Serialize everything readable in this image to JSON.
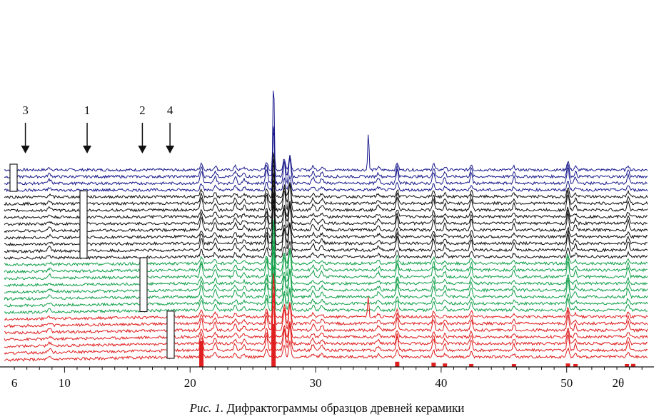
{
  "chart_data": {
    "type": "line",
    "title": "",
    "xlabel": "2θ",
    "ylabel": "",
    "x_ticks": [
      6,
      10,
      20,
      30,
      40,
      50
    ],
    "x_tick_labels": [
      "6",
      "10",
      "20",
      "30",
      "40",
      "50"
    ],
    "xlim": [
      5.2,
      56.5
    ],
    "stacked_traces": true,
    "groups": [
      {
        "color": "#1a1a8c",
        "traces": 4,
        "sample": "3"
      },
      {
        "color": "#111111",
        "traces": 10,
        "sample": "1"
      },
      {
        "color": "#12a04a",
        "traces": 8,
        "sample": "2"
      },
      {
        "color": "#e02020",
        "traces": 7,
        "sample": "4"
      }
    ],
    "peaks": [
      {
        "pos": 8.8,
        "h": 0.12,
        "w": 0.18
      },
      {
        "pos": 20.9,
        "h": 0.42,
        "w": 0.14
      },
      {
        "pos": 22.0,
        "h": 0.25,
        "w": 0.14
      },
      {
        "pos": 23.6,
        "h": 0.22,
        "w": 0.14
      },
      {
        "pos": 24.3,
        "h": 0.15,
        "w": 0.14
      },
      {
        "pos": 26.1,
        "h": 0.5,
        "w": 0.12
      },
      {
        "pos": 26.65,
        "h": 2.2,
        "w": 0.08
      },
      {
        "pos": 27.5,
        "h": 0.7,
        "w": 0.12
      },
      {
        "pos": 27.95,
        "h": 0.9,
        "w": 0.12
      },
      {
        "pos": 29.8,
        "h": 0.2,
        "w": 0.15
      },
      {
        "pos": 30.5,
        "h": 0.18,
        "w": 0.15
      },
      {
        "pos": 35.0,
        "h": 0.15,
        "w": 0.15
      },
      {
        "pos": 36.5,
        "h": 0.45,
        "w": 0.12
      },
      {
        "pos": 39.4,
        "h": 0.38,
        "w": 0.12
      },
      {
        "pos": 40.3,
        "h": 0.2,
        "w": 0.12
      },
      {
        "pos": 42.4,
        "h": 0.35,
        "w": 0.12
      },
      {
        "pos": 45.8,
        "h": 0.2,
        "w": 0.12
      },
      {
        "pos": 50.1,
        "h": 0.55,
        "w": 0.12
      },
      {
        "pos": 50.7,
        "h": 0.2,
        "w": 0.12
      },
      {
        "pos": 54.9,
        "h": 0.3,
        "w": 0.12
      }
    ],
    "special_peaks": [
      {
        "pos": 34.2,
        "h": 2.4,
        "group": "#1a1a8c"
      },
      {
        "pos": 34.2,
        "h": 1.3,
        "group": "#e02020"
      },
      {
        "pos": 26.65,
        "h": 3.5,
        "group": "#1a1a8c"
      }
    ],
    "markers": [
      {
        "label": "3",
        "pos": 6.2
      },
      {
        "label": "1",
        "pos": 11.8
      },
      {
        "label": "2",
        "pos": 16.2
      },
      {
        "label": "4",
        "pos": 18.4
      }
    ],
    "reference_sticks": [
      {
        "pos": 20.9,
        "h": 0.6
      },
      {
        "pos": 26.65,
        "h": 1.0
      },
      {
        "pos": 36.5,
        "h": 0.12
      },
      {
        "pos": 39.4,
        "h": 0.1
      },
      {
        "pos": 40.3,
        "h": 0.08
      },
      {
        "pos": 42.4,
        "h": 0.06
      },
      {
        "pos": 45.8,
        "h": 0.05
      },
      {
        "pos": 50.1,
        "h": 0.08
      },
      {
        "pos": 50.7,
        "h": 0.06
      },
      {
        "pos": 54.8,
        "h": 0.05
      },
      {
        "pos": 55.3,
        "h": 0.07
      }
    ]
  },
  "caption": {
    "prefix": "Рис. 1.",
    "text": " Дифрактограммы образцов древней керамики"
  }
}
